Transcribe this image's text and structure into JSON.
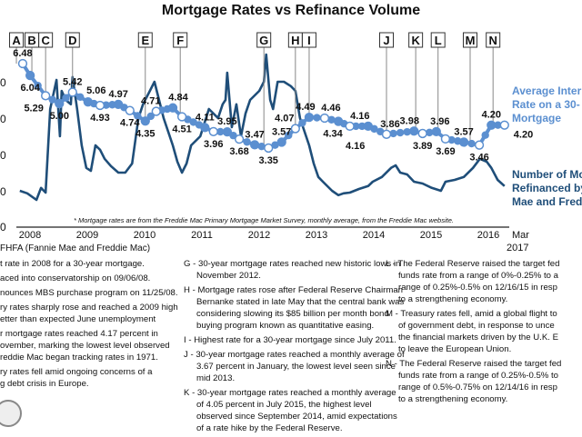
{
  "chart_data": {
    "type": "line",
    "title": "Mortgage Rates vs Refinance Volume",
    "footnote": "* Mortgage rates are from the Freddie Mac Primary Mortgage Market Survey, monthly average, from the Freddie Mac website.",
    "x_tick_labels": [
      "2008",
      "2009",
      "2010",
      "2011",
      "2012",
      "2013",
      "2014",
      "2015",
      "2016"
    ],
    "x_end_label": [
      "Mar",
      "2017"
    ],
    "left_axis_tick_fragments": [
      "0",
      "0",
      "0",
      "0",
      "0"
    ],
    "grid": false,
    "series": [
      {
        "name": "Average Interest Rate on a 30-year Mortgage",
        "legend_lines": [
          "Average Inter",
          "Rate on a 30-",
          "Mortgage"
        ],
        "color": "#5b8fd0",
        "points": [
          {
            "x": 2007.92,
            "y": 6.48,
            "label": "6.48",
            "pos": "above"
          },
          {
            "x": 2008.05,
            "y": 6.04,
            "label": "6.04",
            "pos": "below"
          },
          {
            "x": 2008.32,
            "y": 5.29,
            "label": "5.29",
            "pos": "below"
          },
          {
            "x": 2008.56,
            "y": 5.0,
            "label": "5.00",
            "pos": "below"
          },
          {
            "x": 2008.79,
            "y": 5.42,
            "label": "5.42",
            "pos": "above"
          },
          {
            "x": 2009.06,
            "y": 5.06,
            "label": "5.06",
            "pos": "above"
          },
          {
            "x": 2009.27,
            "y": 4.93,
            "label": "4.93",
            "pos": "below"
          },
          {
            "x": 2009.59,
            "y": 4.97,
            "label": "4.97",
            "pos": "above"
          },
          {
            "x": 2009.79,
            "y": 4.74,
            "label": "4.74",
            "pos": "below"
          },
          {
            "x": 2010.06,
            "y": 4.35,
            "label": "4.35",
            "pos": "below"
          },
          {
            "x": 2010.25,
            "y": 4.71,
            "label": "4.71",
            "pos": "above"
          },
          {
            "x": 2010.54,
            "y": 4.84,
            "label": "4.84",
            "pos": "above"
          },
          {
            "x": 2010.7,
            "y": 4.51,
            "label": "4.51",
            "pos": "below"
          },
          {
            "x": 2011.1,
            "y": 4.11,
            "label": "4.11",
            "pos": "above"
          },
          {
            "x": 2011.25,
            "y": 3.96,
            "label": "3.96",
            "pos": "below"
          },
          {
            "x": 2011.49,
            "y": 3.95,
            "label": "3.95",
            "pos": "above"
          },
          {
            "x": 2011.7,
            "y": 3.68,
            "label": "3.68",
            "pos": "below"
          },
          {
            "x": 2011.97,
            "y": 3.47,
            "label": "3.47",
            "pos": "above"
          },
          {
            "x": 2012.21,
            "y": 3.35,
            "label": "3.35",
            "pos": "below"
          },
          {
            "x": 2012.44,
            "y": 3.57,
            "label": "3.57",
            "pos": "above"
          },
          {
            "x": 2012.68,
            "y": 4.07,
            "label": "4.07",
            "pos": "above"
          },
          {
            "x": 2012.92,
            "y": 4.49,
            "label": "4.49",
            "pos": "above"
          },
          {
            "x": 2013.19,
            "y": 4.46,
            "label": "4.46",
            "pos": "above"
          },
          {
            "x": 2013.43,
            "y": 4.34,
            "label": "4.34",
            "pos": "below"
          },
          {
            "x": 2013.63,
            "y": 4.16,
            "label": "4.16",
            "pos": "below"
          },
          {
            "x": 2013.95,
            "y": 4.16,
            "label": "4.16",
            "pos": "above"
          },
          {
            "x": 2014.27,
            "y": 3.86,
            "label": "3.86",
            "pos": "above"
          },
          {
            "x": 2014.75,
            "y": 3.98,
            "label": "3.98",
            "pos": "above"
          },
          {
            "x": 2014.9,
            "y": 3.89,
            "label": "3.89",
            "pos": "below"
          },
          {
            "x": 2015.14,
            "y": 3.96,
            "label": "3.96",
            "pos": "above"
          },
          {
            "x": 2015.3,
            "y": 3.69,
            "label": "3.69",
            "pos": "below"
          },
          {
            "x": 2015.62,
            "y": 3.57,
            "label": "3.57",
            "pos": "above"
          },
          {
            "x": 2015.89,
            "y": 3.46,
            "label": "3.46",
            "pos": "below"
          },
          {
            "x": 2016.1,
            "y": 4.2,
            "label": "4.20",
            "pos": "above"
          },
          {
            "x": 2016.33,
            "y": 4.2,
            "label": "4.20",
            "pos": "right"
          }
        ]
      },
      {
        "name": "Number of Mortgages Refinanced by Fannie Mae and Freddie Mac",
        "legend_lines": [
          "Number of Mo",
          "Refinanced by",
          "Mae and Fred"
        ],
        "color": "#1f4e79",
        "x": [
          2007.87,
          2008.0,
          2008.16,
          2008.24,
          2008.32,
          2008.4,
          2008.51,
          2008.57,
          2008.6,
          2008.67,
          2008.76,
          2008.79,
          2008.87,
          2008.95,
          2009.03,
          2009.11,
          2009.19,
          2009.27,
          2009.35,
          2009.46,
          2009.59,
          2009.71,
          2009.83,
          2009.94,
          2010.02,
          2010.14,
          2010.22,
          2010.3,
          2010.38,
          2010.54,
          2010.62,
          2010.7,
          2010.78,
          2010.86,
          2011.02,
          2011.17,
          2011.33,
          2011.41,
          2011.46,
          2011.49,
          2011.57,
          2011.65,
          2011.73,
          2011.81,
          2011.89,
          2012.05,
          2012.13,
          2012.17,
          2012.24,
          2012.29,
          2012.37,
          2012.48,
          2012.6,
          2012.68,
          2012.76,
          2012.92,
          2013.0,
          2013.08,
          2013.16,
          2013.32,
          2013.43,
          2013.52,
          2013.63,
          2013.79,
          2013.95,
          2014.03,
          2014.19,
          2014.35,
          2014.43,
          2014.51,
          2014.63,
          2014.75,
          2014.9,
          2015.06,
          2015.22,
          2015.3,
          2015.46,
          2015.62,
          2015.78,
          2015.9,
          2016.02,
          2016.1,
          2016.21,
          2016.33
        ],
        "values": [
          1.0,
          0.93,
          0.75,
          1.08,
          0.95,
          3.25,
          4.05,
          2.5,
          3.75,
          3.5,
          3.38,
          4.13,
          3.25,
          2.25,
          1.63,
          1.55,
          2.25,
          2.13,
          1.88,
          1.68,
          1.5,
          1.5,
          1.75,
          3.0,
          3.38,
          3.75,
          4.0,
          3.5,
          3.0,
          2.25,
          1.8,
          1.5,
          1.75,
          2.25,
          2.5,
          3.25,
          3.0,
          3.38,
          3.5,
          4.25,
          2.75,
          3.38,
          2.5,
          3.13,
          3.5,
          3.75,
          4.0,
          4.75,
          3.5,
          3.25,
          4.0,
          4.0,
          3.88,
          3.75,
          3.0,
          2.25,
          1.75,
          1.38,
          1.25,
          1.0,
          0.88,
          0.93,
          0.95,
          1.05,
          1.13,
          1.25,
          1.38,
          1.63,
          1.7,
          1.5,
          1.45,
          1.25,
          1.2,
          1.08,
          1.0,
          1.25,
          1.3,
          1.38,
          1.63,
          1.88,
          1.8,
          1.63,
          1.3,
          1.13
        ]
      }
    ],
    "events": [
      {
        "letter": "A",
        "x": 2007.81
      },
      {
        "letter": "B",
        "x": 2008.08
      },
      {
        "letter": "C",
        "x": 2008.32
      },
      {
        "letter": "D",
        "x": 2008.79
      },
      {
        "letter": "E",
        "x": 2010.06
      },
      {
        "letter": "F",
        "x": 2010.67
      },
      {
        "letter": "G",
        "x": 2012.13
      },
      {
        "letter": "H",
        "x": 2012.68
      },
      {
        "letter": "I",
        "x": 2012.92
      },
      {
        "letter": "J",
        "x": 2014.27
      },
      {
        "letter": "K",
        "x": 2014.78
      },
      {
        "letter": "L",
        "x": 2015.17
      },
      {
        "letter": "M",
        "x": 2015.73
      },
      {
        "letter": "N",
        "x": 2016.13
      }
    ]
  },
  "source": "FHFA (Fannie Mae and Freddie Mac)",
  "notes": {
    "col1": [
      {
        "lines": [
          "t rate in 2008 for a 30-year mortgage."
        ]
      },
      {
        "lines": [
          "aced into conservatorship on 09/06/08."
        ]
      },
      {
        "lines": [
          "nounces MBS purchase program on 11/25/08."
        ]
      },
      {
        "lines": [
          "ry rates sharply rose and reached a 2009 high",
          "etter than expected June unemployment",
          " "
        ]
      },
      {
        "lines": [
          "r mortgage rates reached 4.17 percent in",
          "ovember, marking the lowest level observed",
          "reddie Mac began tracking rates in 1971."
        ]
      },
      {
        "lines": [
          "ry rates fell amid ongoing concerns of a",
          "g debt crisis in Europe."
        ]
      }
    ],
    "col2": [
      {
        "lines": [
          "G - 30-year mortgage rates reached new historic lows in",
          "November 2012."
        ]
      },
      {
        "lines": [
          "H - Mortgage rates rose after Federal Reserve Chairman",
          "Bernanke stated in late May that the central bank was",
          "considering slowing its $85 billion per month bond",
          "buying program known as quantitative easing."
        ]
      },
      {
        "lines": [
          "I  - Highest rate for a 30-year mortgage since July 2011."
        ]
      },
      {
        "lines": [
          "J - 30-year mortgage rates reached a monthly average of",
          "3.67  percent in  January, the lowest level seen since",
          "mid 2013."
        ]
      },
      {
        "lines": [
          "K - 30-year mortgage rates reached a monthly  average",
          "of 4.05 percent in July 2015, the highest level",
          "observed since September 2014,  amid expectations",
          "of a rate hike by the Federal  Reserve."
        ]
      }
    ],
    "col3": [
      {
        "lines": [
          "L -   The Federal Reserve raised the target fed",
          "funds rate from a range of 0%-0.25% to a",
          "range of 0.25%-0.5% on 12/16/15 in resp",
          "to a strengthening economy."
        ]
      },
      {
        "lines": [
          "M - Treasury rates fell, amid a global flight to",
          "of government debt, in response to unce",
          "the financial markets driven by the U.K. E",
          "to leave the European Union."
        ]
      },
      {
        "lines": [
          "N  -  The Federal Reserve raised the target fed",
          "funds rate from a range of 0.25%-0.5% to",
          "range of 0.5%-0.75% on 12/14/16 in resp",
          "to a strengthening economy."
        ]
      }
    ]
  }
}
